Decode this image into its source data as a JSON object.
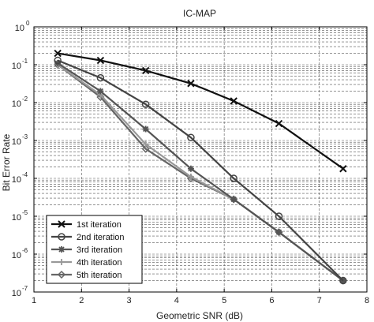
{
  "chart_data": {
    "type": "line",
    "title": "IC-MAP",
    "xlabel": "Geometric SNR (dB)",
    "ylabel": "Bit Error Rate",
    "xlim": [
      1,
      8
    ],
    "ylim": [
      1e-07,
      1
    ],
    "yscale": "log",
    "grid": true,
    "legend_position": "bottom-left",
    "x_ticks": [
      "1",
      "2",
      "3",
      "4",
      "5",
      "6",
      "7",
      "8"
    ],
    "y_tick_labels": [
      {
        "base": "10",
        "exp": "-7",
        "value": 1e-07
      },
      {
        "base": "10",
        "exp": "-6",
        "value": 1e-06
      },
      {
        "base": "10",
        "exp": "-5",
        "value": 1e-05
      },
      {
        "base": "10",
        "exp": "-4",
        "value": 0.0001
      },
      {
        "base": "10",
        "exp": "-3",
        "value": 0.001
      },
      {
        "base": "10",
        "exp": "-2",
        "value": 0.01
      },
      {
        "base": "10",
        "exp": "-1",
        "value": 0.1
      },
      {
        "base": "10",
        "exp": "0",
        "value": 1
      }
    ],
    "series": [
      {
        "name": "1st iteration",
        "marker": "x",
        "color": "#111111",
        "stroke_width": 2.2,
        "x": [
          1.5,
          2.4,
          3.35,
          4.3,
          5.2,
          6.15,
          7.5
        ],
        "y": [
          0.2,
          0.13,
          0.07,
          0.032,
          0.011,
          0.0028,
          0.00018
        ]
      },
      {
        "name": "2nd iteration",
        "marker": "circle",
        "color": "#444444",
        "stroke_width": 2.2,
        "x": [
          1.5,
          2.4,
          3.35,
          4.3,
          5.2,
          6.15,
          7.5
        ],
        "y": [
          0.13,
          0.045,
          0.009,
          0.0012,
          0.0001,
          1e-05,
          2e-07
        ]
      },
      {
        "name": "3rd iteration",
        "marker": "star",
        "color": "#555555",
        "stroke_width": 2.2,
        "x": [
          1.5,
          2.4,
          3.35,
          4.3,
          5.2,
          6.15,
          7.5
        ],
        "y": [
          0.11,
          0.02,
          0.002,
          0.00018,
          2.8e-05,
          3.8e-06,
          2e-07
        ]
      },
      {
        "name": "4th iteration",
        "marker": "plus",
        "color": "#999999",
        "stroke_width": 2.2,
        "x": [
          1.5,
          2.4,
          3.35,
          4.3,
          5.2,
          6.15,
          7.5
        ],
        "y": [
          0.1,
          0.016,
          0.0008,
          0.00011,
          2.8e-05,
          3.8e-06,
          2e-07
        ]
      },
      {
        "name": "5th iteration",
        "marker": "diamond",
        "color": "#666666",
        "stroke_width": 2.2,
        "x": [
          1.5,
          2.4,
          3.35,
          4.3,
          5.2,
          6.15,
          7.5
        ],
        "y": [
          0.1,
          0.014,
          0.0006,
          0.0001,
          2.8e-05,
          3.8e-06,
          2e-07
        ]
      }
    ]
  }
}
